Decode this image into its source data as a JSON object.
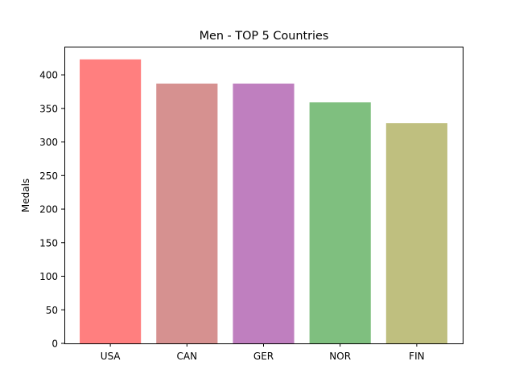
{
  "chart_data": {
    "type": "bar",
    "title": "Men - TOP 5 Countries",
    "xlabel": "",
    "ylabel": "Medals",
    "categories": [
      "USA",
      "CAN",
      "GER",
      "NOR",
      "FIN"
    ],
    "values": [
      423,
      387,
      387,
      359,
      328
    ],
    "colors": [
      "#ff7f7f",
      "#d69190",
      "#bf7fbf",
      "#7fbf7f",
      "#bfbf7f"
    ],
    "ylim": [
      0,
      442
    ],
    "yticks": [
      0,
      50,
      100,
      150,
      200,
      250,
      300,
      350,
      400
    ],
    "grid": false,
    "legend": "none"
  }
}
